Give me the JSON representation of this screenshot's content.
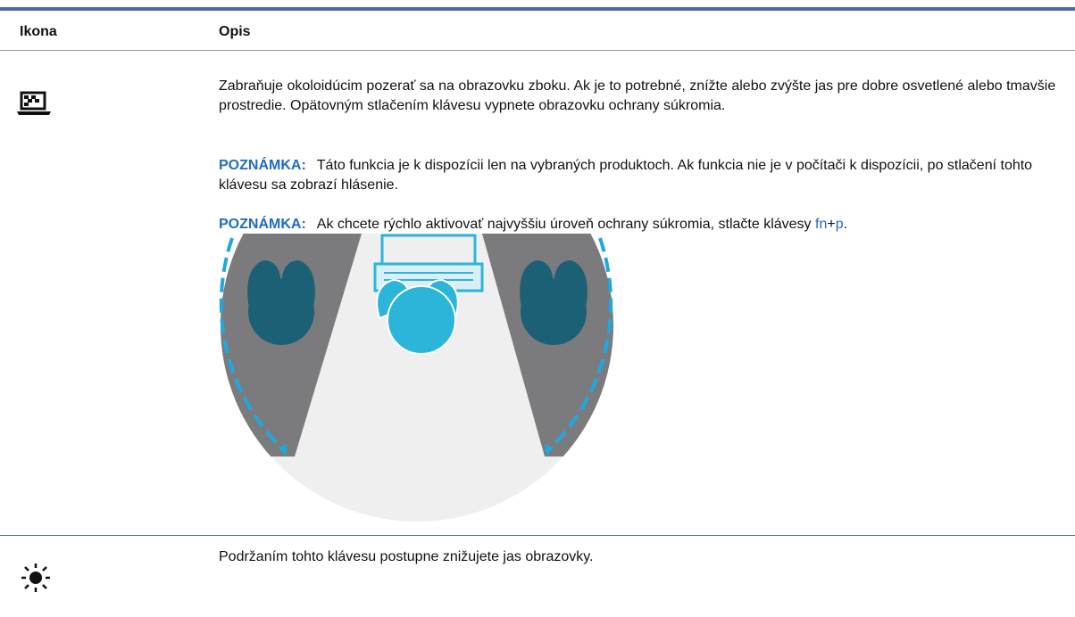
{
  "table": {
    "columns": [
      "Ikona",
      "Opis"
    ],
    "rows": [
      {
        "description": "Zabraňuje okoloidúcim pozerať sa na obrazovku zboku. Ak je to potrebné, znížte alebo zvýšte jas pre dobre osvetlené alebo tmavšie prostredie. Opätovným stlačením klávesu vypnete obrazovku ochrany súkromia.",
        "notes": [
          {
            "label": "POZNÁMKA:",
            "text": "Táto funkcia je k dispozícii len na vybraných produktoch. Ak funkcia nie je v počítači k dispozícii, po stlačení tohto klávesu sa zobrazí hlásenie."
          },
          {
            "label": "POZNÁMKA:",
            "text": "Ak chcete rýchlo aktivovať najvyššiu úroveň ochrany súkromia, stlačte klávesy ",
            "key1": "fn",
            "separator": "+",
            "key2": "p",
            "end": "."
          }
        ]
      },
      {
        "description": "Podržaním tohto klávesu postupne znižujete jas obrazovky."
      }
    ]
  }
}
